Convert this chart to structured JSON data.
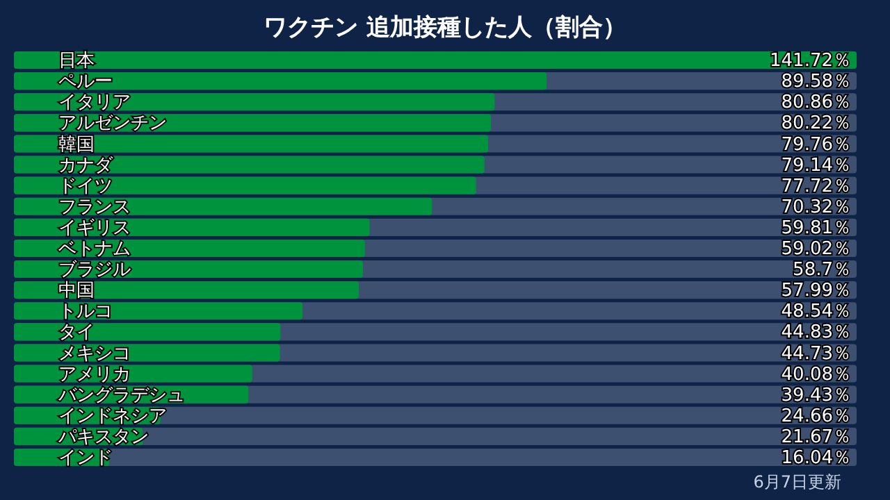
{
  "chart_data": {
    "type": "bar",
    "orientation": "horizontal",
    "title": "ワクチン 追加接種した人（割合）",
    "categories": [
      "日本",
      "ペルー",
      "イタリア",
      "アルゼンチン",
      "韓国",
      "カナダ",
      "ドイツ",
      "フランス",
      "イギリス",
      "ベトナム",
      "ブラジル",
      "中国",
      "トルコ",
      "タイ",
      "メキシコ",
      "アメリカ",
      "バングラデシュ",
      "インドネシア",
      "パキスタン",
      "インド"
    ],
    "values": [
      141.72,
      89.58,
      80.86,
      80.22,
      79.76,
      79.14,
      77.72,
      70.32,
      59.81,
      59.02,
      58.7,
      57.99,
      48.54,
      44.83,
      44.73,
      40.08,
      39.43,
      24.66,
      21.67,
      16.04
    ],
    "value_labels": [
      "141.72％",
      "89.58％",
      "80.86％",
      "80.22％",
      "79.76％",
      "79.14％",
      "77.72％",
      "70.32％",
      "59.81％",
      "59.02％",
      "58.7％",
      "57.99％",
      "48.54％",
      "44.83％",
      "44.73％",
      "40.08％",
      "39.43％",
      "24.66％",
      "21.67％",
      "16.04％"
    ],
    "color": "#00933e",
    "annotations": [
      "6月7日更新"
    ]
  }
}
